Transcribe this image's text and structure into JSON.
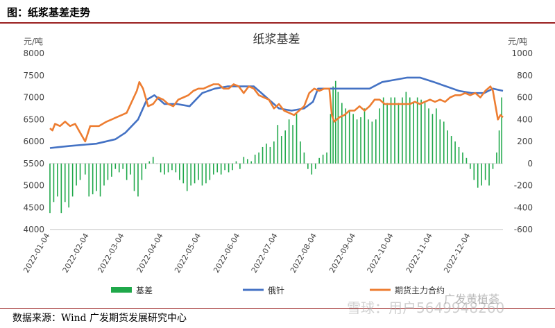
{
  "caption": "图：纸浆基差走势",
  "source": "数据来源：Wind  广发期货发展研究中心",
  "watermark_main": "雪球：用户5649948260",
  "watermark_sub": "广发黄植荟",
  "colors": {
    "basis": "#1fa84a",
    "spot": "#4472c4",
    "futures": "#ed7d31",
    "caption_rule": "#9a1f1f"
  },
  "chart_data": {
    "type": "bar",
    "title": "纸浆基差",
    "ylabel": "元/吨",
    "y2label": "元/吨",
    "ylim": [
      4000,
      8000
    ],
    "yticks": [
      4000,
      4500,
      5000,
      5500,
      6000,
      6500,
      7000,
      7500,
      8000
    ],
    "y2lim": [
      -600,
      1000
    ],
    "y2ticks": [
      -600,
      -400,
      -200,
      0,
      200,
      400,
      600,
      800,
      1000
    ],
    "xticks": [
      "2022-01-04",
      "2022-02-04",
      "2022-03-04",
      "2022-04-04",
      "2022-05-04",
      "2022-06-04",
      "2022-07-04",
      "2022-08-04",
      "2022-09-04",
      "2022-10-04",
      "2022-11-04",
      "2022-12-04"
    ],
    "x_start": "2022-01-04",
    "x_end": "2022-12-30",
    "legend": [
      "基差",
      "俄针",
      "期货主力合约"
    ],
    "legend_position": "bottom",
    "series": [
      {
        "name": "俄针",
        "axis": "left",
        "kind": "line",
        "points": [
          [
            "2022-01-04",
            5850
          ],
          [
            "2022-01-10",
            5870
          ],
          [
            "2022-01-20",
            5900
          ],
          [
            "2022-02-10",
            5950
          ],
          [
            "2022-02-25",
            6050
          ],
          [
            "2022-03-05",
            6200
          ],
          [
            "2022-03-15",
            6500
          ],
          [
            "2022-03-22",
            6950
          ],
          [
            "2022-03-28",
            7050
          ],
          [
            "2022-04-05",
            6850
          ],
          [
            "2022-04-15",
            6850
          ],
          [
            "2022-04-25",
            6800
          ],
          [
            "2022-05-05",
            7100
          ],
          [
            "2022-05-15",
            7200
          ],
          [
            "2022-05-25",
            7250
          ],
          [
            "2022-06-05",
            7250
          ],
          [
            "2022-06-15",
            7250
          ],
          [
            "2022-06-25",
            7000
          ],
          [
            "2022-07-05",
            6750
          ],
          [
            "2022-07-15",
            6700
          ],
          [
            "2022-07-25",
            6750
          ],
          [
            "2022-08-01",
            6900
          ],
          [
            "2022-08-05",
            7200
          ],
          [
            "2022-08-20",
            7200
          ],
          [
            "2022-09-01",
            7200
          ],
          [
            "2022-09-15",
            7200
          ],
          [
            "2022-09-25",
            7350
          ],
          [
            "2022-10-05",
            7400
          ],
          [
            "2022-10-15",
            7450
          ],
          [
            "2022-10-25",
            7450
          ],
          [
            "2022-11-05",
            7350
          ],
          [
            "2022-11-15",
            7250
          ],
          [
            "2022-11-25",
            7150
          ],
          [
            "2022-12-05",
            7100
          ],
          [
            "2022-12-15",
            7100
          ],
          [
            "2022-12-22",
            7200
          ],
          [
            "2022-12-30",
            7150
          ]
        ]
      },
      {
        "name": "期货主力合约",
        "axis": "left",
        "kind": "line",
        "points": [
          [
            "2022-01-04",
            6300
          ],
          [
            "2022-01-06",
            6250
          ],
          [
            "2022-01-08",
            6400
          ],
          [
            "2022-01-12",
            6350
          ],
          [
            "2022-01-16",
            6450
          ],
          [
            "2022-01-20",
            6350
          ],
          [
            "2022-01-24",
            6400
          ],
          [
            "2022-01-28",
            6200
          ],
          [
            "2022-02-01",
            6000
          ],
          [
            "2022-02-05",
            6350
          ],
          [
            "2022-02-12",
            6350
          ],
          [
            "2022-02-18",
            6450
          ],
          [
            "2022-02-22",
            6500
          ],
          [
            "2022-02-26",
            6550
          ],
          [
            "2022-03-02",
            6600
          ],
          [
            "2022-03-06",
            6650
          ],
          [
            "2022-03-10",
            6900
          ],
          [
            "2022-03-14",
            7150
          ],
          [
            "2022-03-16",
            7350
          ],
          [
            "2022-03-19",
            7200
          ],
          [
            "2022-03-23",
            6800
          ],
          [
            "2022-03-27",
            6850
          ],
          [
            "2022-03-31",
            7000
          ],
          [
            "2022-04-04",
            6950
          ],
          [
            "2022-04-08",
            6850
          ],
          [
            "2022-04-12",
            6800
          ],
          [
            "2022-04-16",
            6950
          ],
          [
            "2022-04-20",
            7000
          ],
          [
            "2022-04-24",
            7050
          ],
          [
            "2022-04-28",
            7150
          ],
          [
            "2022-05-02",
            7200
          ],
          [
            "2022-05-06",
            7200
          ],
          [
            "2022-05-10",
            7250
          ],
          [
            "2022-05-14",
            7300
          ],
          [
            "2022-05-18",
            7300
          ],
          [
            "2022-05-22",
            7200
          ],
          [
            "2022-05-26",
            7200
          ],
          [
            "2022-05-30",
            7300
          ],
          [
            "2022-06-03",
            7250
          ],
          [
            "2022-06-07",
            7100
          ],
          [
            "2022-06-11",
            7250
          ],
          [
            "2022-06-15",
            7200
          ],
          [
            "2022-06-19",
            7050
          ],
          [
            "2022-06-23",
            7000
          ],
          [
            "2022-06-27",
            6950
          ],
          [
            "2022-07-01",
            6750
          ],
          [
            "2022-07-05",
            6850
          ],
          [
            "2022-07-09",
            6700
          ],
          [
            "2022-07-13",
            6650
          ],
          [
            "2022-07-17",
            6600
          ],
          [
            "2022-07-21",
            6700
          ],
          [
            "2022-07-25",
            6800
          ],
          [
            "2022-07-29",
            7100
          ],
          [
            "2022-08-02",
            7200
          ],
          [
            "2022-08-06",
            7150
          ],
          [
            "2022-08-10",
            7200
          ],
          [
            "2022-08-14",
            7200
          ],
          [
            "2022-08-16",
            6600
          ],
          [
            "2022-08-18",
            6450
          ],
          [
            "2022-08-22",
            6550
          ],
          [
            "2022-08-26",
            6600
          ],
          [
            "2022-08-30",
            6700
          ],
          [
            "2022-09-03",
            6700
          ],
          [
            "2022-09-07",
            6800
          ],
          [
            "2022-09-11",
            6700
          ],
          [
            "2022-09-15",
            6800
          ],
          [
            "2022-09-19",
            6950
          ],
          [
            "2022-09-23",
            6950
          ],
          [
            "2022-09-27",
            6850
          ],
          [
            "2022-10-01",
            6850
          ],
          [
            "2022-10-05",
            6850
          ],
          [
            "2022-10-09",
            6850
          ],
          [
            "2022-10-13",
            6850
          ],
          [
            "2022-10-17",
            6850
          ],
          [
            "2022-10-21",
            6900
          ],
          [
            "2022-10-25",
            6850
          ],
          [
            "2022-10-29",
            6900
          ],
          [
            "2022-11-02",
            6950
          ],
          [
            "2022-11-06",
            6900
          ],
          [
            "2022-11-10",
            6950
          ],
          [
            "2022-11-14",
            6900
          ],
          [
            "2022-11-18",
            7000
          ],
          [
            "2022-11-22",
            7050
          ],
          [
            "2022-11-26",
            7050
          ],
          [
            "2022-11-30",
            7100
          ],
          [
            "2022-12-04",
            7050
          ],
          [
            "2022-12-08",
            7100
          ],
          [
            "2022-12-12",
            7000
          ],
          [
            "2022-12-16",
            7150
          ],
          [
            "2022-12-18",
            7200
          ],
          [
            "2022-12-20",
            7250
          ],
          [
            "2022-12-22",
            7150
          ],
          [
            "2022-12-26",
            6500
          ],
          [
            "2022-12-28",
            6600
          ],
          [
            "2022-12-30",
            6550
          ]
        ]
      },
      {
        "name": "基差",
        "axis": "right",
        "kind": "bar",
        "points": [
          [
            "2022-01-04",
            -450
          ],
          [
            "2022-01-07",
            -350
          ],
          [
            "2022-01-10",
            -300
          ],
          [
            "2022-01-13",
            -450
          ],
          [
            "2022-01-16",
            -350
          ],
          [
            "2022-01-19",
            -400
          ],
          [
            "2022-01-22",
            -300
          ],
          [
            "2022-01-25",
            -200
          ],
          [
            "2022-01-28",
            -150
          ],
          [
            "2022-02-01",
            -100
          ],
          [
            "2022-02-04",
            -300
          ],
          [
            "2022-02-07",
            -280
          ],
          [
            "2022-02-10",
            -250
          ],
          [
            "2022-02-13",
            -300
          ],
          [
            "2022-02-16",
            -200
          ],
          [
            "2022-02-19",
            -150
          ],
          [
            "2022-02-22",
            -120
          ],
          [
            "2022-02-25",
            -50
          ],
          [
            "2022-02-28",
            -80
          ],
          [
            "2022-03-03",
            -50
          ],
          [
            "2022-03-06",
            -150
          ],
          [
            "2022-03-09",
            -100
          ],
          [
            "2022-03-12",
            -250
          ],
          [
            "2022-03-15",
            -300
          ],
          [
            "2022-03-18",
            -150
          ],
          [
            "2022-03-21",
            -50
          ],
          [
            "2022-03-24",
            20
          ],
          [
            "2022-03-27",
            60
          ],
          [
            "2022-03-30",
            0
          ],
          [
            "2022-04-02",
            -80
          ],
          [
            "2022-04-05",
            -100
          ],
          [
            "2022-04-08",
            -80
          ],
          [
            "2022-04-11",
            -60
          ],
          [
            "2022-04-14",
            -80
          ],
          [
            "2022-04-17",
            -150
          ],
          [
            "2022-04-20",
            -180
          ],
          [
            "2022-04-23",
            -250
          ],
          [
            "2022-04-26",
            -200
          ],
          [
            "2022-04-29",
            -180
          ],
          [
            "2022-05-02",
            -150
          ],
          [
            "2022-05-05",
            -200
          ],
          [
            "2022-05-08",
            -180
          ],
          [
            "2022-05-11",
            -150
          ],
          [
            "2022-05-14",
            -100
          ],
          [
            "2022-05-17",
            -80
          ],
          [
            "2022-05-20",
            -100
          ],
          [
            "2022-05-23",
            -60
          ],
          [
            "2022-05-26",
            -80
          ],
          [
            "2022-05-29",
            -60
          ],
          [
            "2022-06-01",
            20
          ],
          [
            "2022-06-04",
            -50
          ],
          [
            "2022-06-07",
            60
          ],
          [
            "2022-06-10",
            40
          ],
          [
            "2022-06-13",
            20
          ],
          [
            "2022-06-16",
            80
          ],
          [
            "2022-06-19",
            100
          ],
          [
            "2022-06-22",
            150
          ],
          [
            "2022-06-25",
            180
          ],
          [
            "2022-06-28",
            150
          ],
          [
            "2022-07-01",
            200
          ],
          [
            "2022-07-04",
            350
          ],
          [
            "2022-07-07",
            250
          ],
          [
            "2022-07-10",
            300
          ],
          [
            "2022-07-13",
            400
          ],
          [
            "2022-07-16",
            350
          ],
          [
            "2022-07-19",
            450
          ],
          [
            "2022-07-22",
            200
          ],
          [
            "2022-07-25",
            100
          ],
          [
            "2022-07-28",
            -50
          ],
          [
            "2022-07-31",
            -100
          ],
          [
            "2022-08-03",
            -50
          ],
          [
            "2022-08-06",
            50
          ],
          [
            "2022-08-09",
            80
          ],
          [
            "2022-08-12",
            100
          ],
          [
            "2022-08-15",
            450
          ],
          [
            "2022-08-17",
            700
          ],
          [
            "2022-08-19",
            750
          ],
          [
            "2022-08-21",
            650
          ],
          [
            "2022-08-24",
            550
          ],
          [
            "2022-08-27",
            500
          ],
          [
            "2022-08-30",
            480
          ],
          [
            "2022-09-02",
            450
          ],
          [
            "2022-09-05",
            400
          ],
          [
            "2022-09-08",
            420
          ],
          [
            "2022-09-11",
            500
          ],
          [
            "2022-09-14",
            400
          ],
          [
            "2022-09-17",
            380
          ],
          [
            "2022-09-20",
            400
          ],
          [
            "2022-09-23",
            500
          ],
          [
            "2022-09-26",
            600
          ],
          [
            "2022-09-29",
            550
          ],
          [
            "2022-10-02",
            600
          ],
          [
            "2022-10-05",
            600
          ],
          [
            "2022-10-08",
            550
          ],
          [
            "2022-10-11",
            600
          ],
          [
            "2022-10-14",
            650
          ],
          [
            "2022-10-17",
            600
          ],
          [
            "2022-10-20",
            550
          ],
          [
            "2022-10-23",
            600
          ],
          [
            "2022-10-26",
            580
          ],
          [
            "2022-10-29",
            550
          ],
          [
            "2022-11-01",
            500
          ],
          [
            "2022-11-04",
            450
          ],
          [
            "2022-11-07",
            500
          ],
          [
            "2022-11-10",
            400
          ],
          [
            "2022-11-13",
            380
          ],
          [
            "2022-11-16",
            300
          ],
          [
            "2022-11-19",
            250
          ],
          [
            "2022-11-22",
            200
          ],
          [
            "2022-11-25",
            150
          ],
          [
            "2022-11-28",
            100
          ],
          [
            "2022-12-01",
            50
          ],
          [
            "2022-12-04",
            -50
          ],
          [
            "2022-12-07",
            -150
          ],
          [
            "2022-12-10",
            -220
          ],
          [
            "2022-12-13",
            -200
          ],
          [
            "2022-12-16",
            -150
          ],
          [
            "2022-12-19",
            -200
          ],
          [
            "2022-12-22",
            -50
          ],
          [
            "2022-12-25",
            100
          ],
          [
            "2022-12-27",
            300
          ],
          [
            "2022-12-29",
            600
          ]
        ]
      }
    ]
  }
}
